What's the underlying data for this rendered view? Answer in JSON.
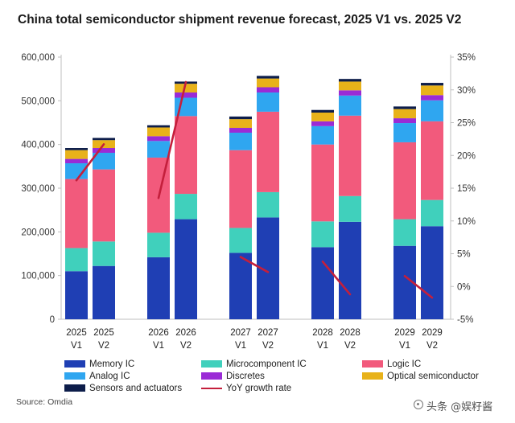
{
  "title": "China total semiconductor shipment revenue forecast, 2025 V1 vs. 2025 V2",
  "source": "Source: Omdia",
  "watermark": "头条 @娱籽酱",
  "colors": {
    "memory_ic": "#1f3fb4",
    "microcomponent_ic": "#40d0bc",
    "logic_ic": "#f25a7c",
    "analog_ic": "#2fa6f0",
    "discretes": "#9a2bd6",
    "optical_semiconductor": "#e8b21a",
    "sensors_and_actuators": "#0d1d4a",
    "yoy_growth_rate": "#c41f3c"
  },
  "chart_data": {
    "type": "bar",
    "stacked": true,
    "title": "China total semiconductor shipment revenue forecast, 2025 V1 vs. 2025 V2",
    "categories": [
      {
        "year": "2025",
        "version": "V1"
      },
      {
        "year": "2025",
        "version": "V2"
      },
      {
        "year": "2026",
        "version": "V1"
      },
      {
        "year": "2026",
        "version": "V2"
      },
      {
        "year": "2027",
        "version": "V1"
      },
      {
        "year": "2027",
        "version": "V2"
      },
      {
        "year": "2028",
        "version": "V1"
      },
      {
        "year": "2028",
        "version": "V2"
      },
      {
        "year": "2029",
        "version": "V1"
      },
      {
        "year": "2029",
        "version": "V2"
      }
    ],
    "series": [
      {
        "key": "memory_ic",
        "name": "Memory IC",
        "values": [
          110000,
          122000,
          142000,
          229000,
          152000,
          233000,
          165000,
          223000,
          168000,
          213000
        ]
      },
      {
        "key": "microcomponent_ic",
        "name": "Microcomponent IC",
        "values": [
          53000,
          56000,
          56000,
          58000,
          57000,
          58000,
          59000,
          59000,
          61000,
          60000
        ]
      },
      {
        "key": "logic_ic",
        "name": "Logic IC",
        "values": [
          158000,
          165000,
          172000,
          178000,
          178000,
          184000,
          176000,
          184000,
          176000,
          180000
        ]
      },
      {
        "key": "analog_ic",
        "name": "Analog IC",
        "values": [
          36000,
          38000,
          38000,
          42000,
          40000,
          44000,
          42000,
          46000,
          44000,
          48000
        ]
      },
      {
        "key": "discretes",
        "name": "Discretes",
        "values": [
          10000,
          11000,
          11000,
          12000,
          11000,
          12000,
          11000,
          12000,
          11000,
          12000
        ]
      },
      {
        "key": "optical_semiconductor",
        "name": "Optical semiconductor",
        "values": [
          20000,
          18000,
          20000,
          20000,
          20000,
          20000,
          20000,
          20000,
          21000,
          22000
        ]
      },
      {
        "key": "sensors_and_actuators",
        "name": "Sensors and actuators",
        "values": [
          5000,
          5000,
          5000,
          5000,
          6000,
          6000,
          6000,
          6000,
          6000,
          6000
        ]
      }
    ],
    "yoy_growth_rate": {
      "name": "YoY growth rate",
      "axis": "right",
      "segments": [
        {
          "from": {
            "category": "2025 V1",
            "value": 16.2
          },
          "to": {
            "category": "2025 V2",
            "value": 21.7
          }
        },
        {
          "from": {
            "category": "2026 V1",
            "value": 13.5
          },
          "to": {
            "category": "2026 V2",
            "value": 31.2
          }
        },
        {
          "from": {
            "category": "2027 V1",
            "value": 4.5
          },
          "to": {
            "category": "2027 V2",
            "value": 2.2
          }
        },
        {
          "from": {
            "category": "2028 V1",
            "value": 3.8
          },
          "to": {
            "category": "2028 V2",
            "value": -1.2
          }
        },
        {
          "from": {
            "category": "2029 V1",
            "value": 1.6
          },
          "to": {
            "category": "2029 V2",
            "value": -1.7
          }
        }
      ]
    },
    "y_left": {
      "min": 0,
      "max": 600000,
      "ticks": [
        "0",
        "100,000",
        "200,000",
        "300,000",
        "400,000",
        "500,000",
        "600,000"
      ]
    },
    "y_right": {
      "min": -5,
      "max": 35,
      "ticks": [
        "-5%",
        "0%",
        "5%",
        "10%",
        "15%",
        "20%",
        "25%",
        "30%",
        "35%"
      ]
    },
    "grid": false,
    "legend_position": "bottom"
  },
  "legend": [
    {
      "key": "memory_ic",
      "label": "Memory IC",
      "kind": "box"
    },
    {
      "key": "microcomponent_ic",
      "label": "Microcomponent IC",
      "kind": "box"
    },
    {
      "key": "logic_ic",
      "label": "Logic IC",
      "kind": "box"
    },
    {
      "key": "analog_ic",
      "label": "Analog IC",
      "kind": "box"
    },
    {
      "key": "discretes",
      "label": "Discretes",
      "kind": "box"
    },
    {
      "key": "optical_semiconductor",
      "label": "Optical semiconductor",
      "kind": "box"
    },
    {
      "key": "sensors_and_actuators",
      "label": "Sensors and actuators",
      "kind": "box"
    },
    {
      "key": "yoy_growth_rate",
      "label": "YoY growth rate",
      "kind": "line"
    }
  ]
}
